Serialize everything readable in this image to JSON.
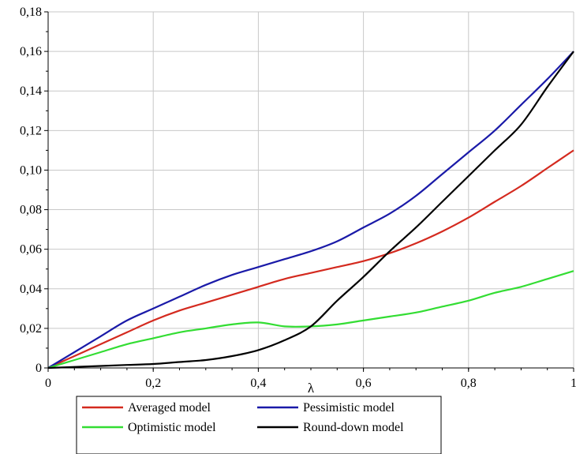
{
  "chart_data": {
    "type": "line",
    "title": "",
    "xlabel": "λ",
    "ylabel": "",
    "xlim": [
      0,
      1
    ],
    "ylim": [
      0,
      0.18
    ],
    "grid": true,
    "legend_position": "bottom",
    "x_ticks": [
      "0",
      "0,2",
      "0,4",
      "0,6",
      "0,8",
      "1"
    ],
    "y_ticks": [
      "0",
      "0,02",
      "0,04",
      "0,06",
      "0,08",
      "0,10",
      "0,12",
      "0,14",
      "0,16",
      "0,18"
    ],
    "series": [
      {
        "name": "Averaged model",
        "color": "#d42a1f",
        "x": [
          0,
          0.05,
          0.1,
          0.15,
          0.2,
          0.25,
          0.3,
          0.35,
          0.4,
          0.45,
          0.5,
          0.55,
          0.6,
          0.65,
          0.7,
          0.75,
          0.8,
          0.85,
          0.9,
          0.95,
          1.0
        ],
        "y": [
          0,
          0.006,
          0.012,
          0.018,
          0.024,
          0.029,
          0.033,
          0.037,
          0.041,
          0.045,
          0.048,
          0.051,
          0.054,
          0.058,
          0.063,
          0.069,
          0.076,
          0.084,
          0.092,
          0.101,
          0.11
        ]
      },
      {
        "name": "Pessimistic model",
        "color": "#1a1aa8",
        "x": [
          0,
          0.05,
          0.1,
          0.15,
          0.2,
          0.25,
          0.3,
          0.35,
          0.4,
          0.45,
          0.5,
          0.55,
          0.6,
          0.65,
          0.7,
          0.75,
          0.8,
          0.85,
          0.9,
          0.95,
          1.0
        ],
        "y": [
          0,
          0.008,
          0.016,
          0.024,
          0.03,
          0.036,
          0.042,
          0.047,
          0.051,
          0.055,
          0.059,
          0.064,
          0.071,
          0.078,
          0.087,
          0.098,
          0.109,
          0.12,
          0.133,
          0.146,
          0.16
        ]
      },
      {
        "name": "Optimistic model",
        "color": "#33dd33",
        "x": [
          0,
          0.05,
          0.1,
          0.15,
          0.2,
          0.25,
          0.3,
          0.35,
          0.4,
          0.45,
          0.5,
          0.55,
          0.6,
          0.65,
          0.7,
          0.75,
          0.8,
          0.85,
          0.9,
          0.95,
          1.0
        ],
        "y": [
          0,
          0.004,
          0.008,
          0.012,
          0.015,
          0.018,
          0.02,
          0.022,
          0.023,
          0.021,
          0.021,
          0.022,
          0.024,
          0.026,
          0.028,
          0.031,
          0.034,
          0.038,
          0.041,
          0.045,
          0.049
        ]
      },
      {
        "name": "Round-down model",
        "color": "#000000",
        "x": [
          0,
          0.05,
          0.1,
          0.15,
          0.2,
          0.25,
          0.3,
          0.35,
          0.4,
          0.45,
          0.5,
          0.55,
          0.6,
          0.65,
          0.7,
          0.75,
          0.8,
          0.85,
          0.9,
          0.95,
          1.0
        ],
        "y": [
          0,
          0.0005,
          0.001,
          0.0015,
          0.002,
          0.003,
          0.004,
          0.006,
          0.009,
          0.014,
          0.021,
          0.034,
          0.046,
          0.059,
          0.071,
          0.084,
          0.097,
          0.11,
          0.123,
          0.142,
          0.16
        ]
      }
    ]
  }
}
